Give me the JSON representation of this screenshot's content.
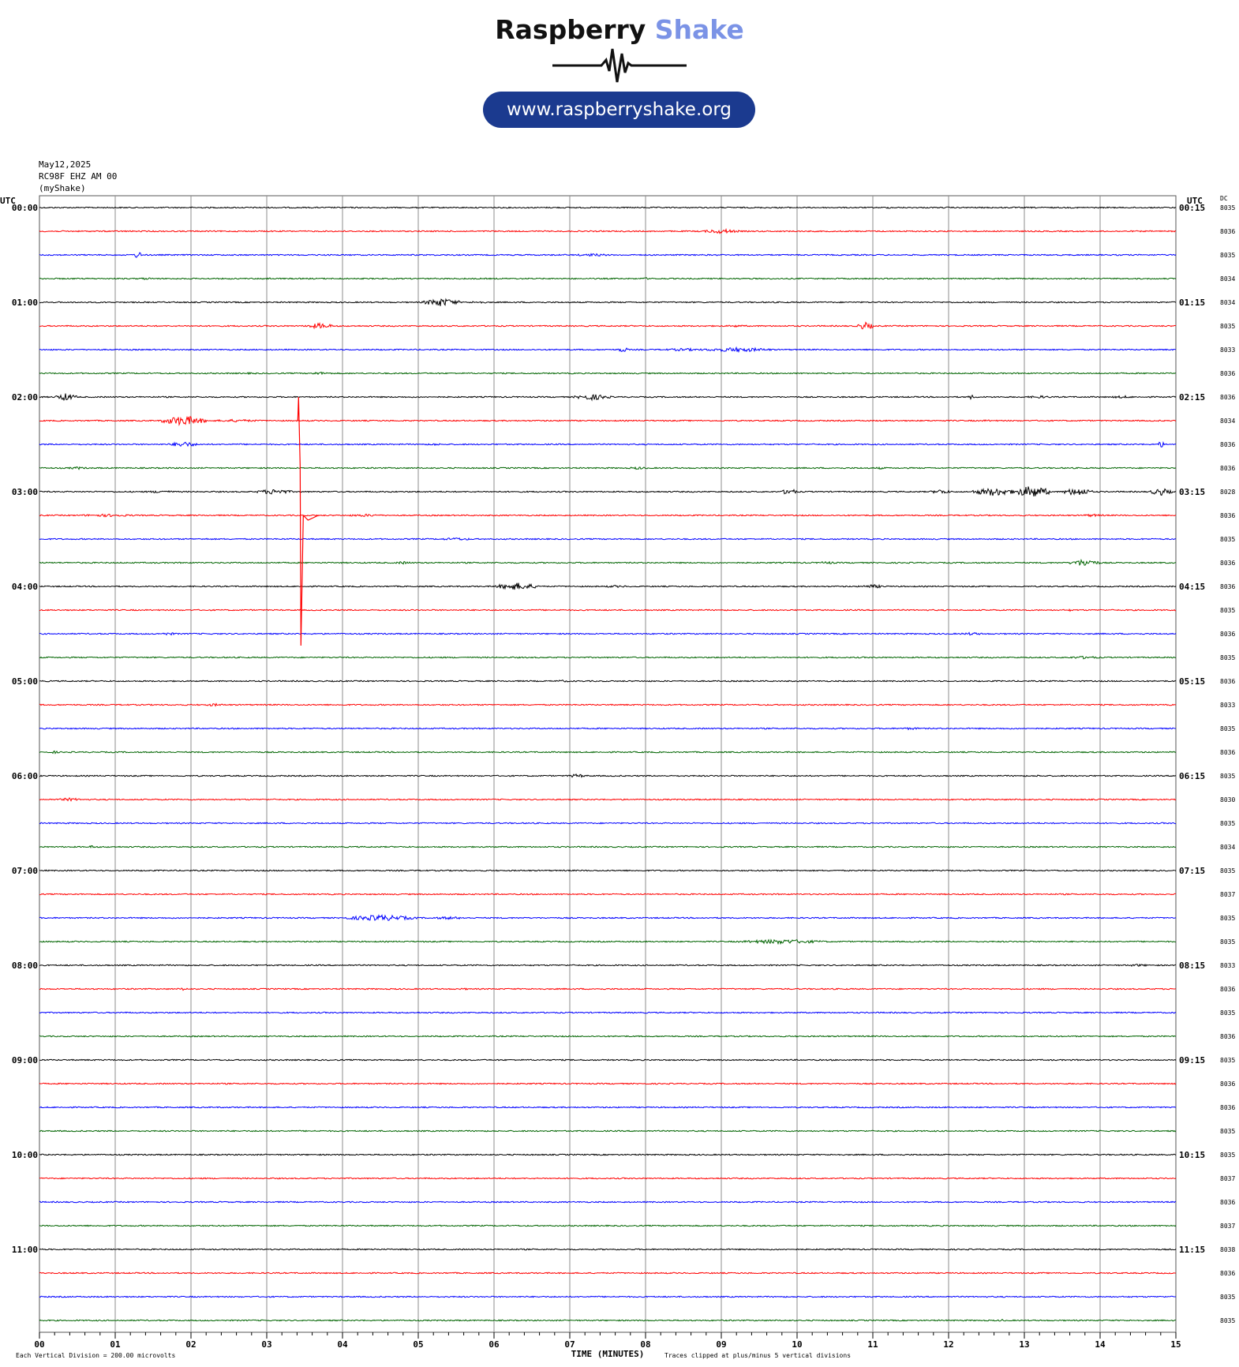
{
  "logo": {
    "title_part1": "Raspberry",
    "title_part2": "Shake",
    "url": "www.raspberryshake.org"
  },
  "header": {
    "date": "May12,2025",
    "station": "RC98F EHZ AM 00",
    "network": "(myShake)"
  },
  "colors": {
    "line_colors": [
      "#000000",
      "#ff0000",
      "#0000ff",
      "#006400"
    ],
    "grid": "#8c8c8c",
    "logo_blue": "#1b3a8f",
    "logo_light_blue": "#7b93e6"
  },
  "chart_data": {
    "type": "line",
    "title": "",
    "xlabel": "TIME (MINUTES)",
    "xlim": [
      0,
      15
    ],
    "x_ticks": [
      "00",
      "01",
      "02",
      "03",
      "04",
      "05",
      "06",
      "07",
      "08",
      "09",
      "10",
      "11",
      "12",
      "13",
      "14",
      "15"
    ],
    "left_axis_header": "UTC",
    "right_axis_header": "UTC",
    "dc_header": "DC",
    "left_hour_labels": [
      "00:00",
      "01:00",
      "02:00",
      "03:00",
      "04:00",
      "05:00",
      "06:00",
      "07:00",
      "08:00",
      "09:00",
      "10:00",
      "11:00"
    ],
    "right_hour_labels": [
      "00:15",
      "01:15",
      "02:15",
      "03:15",
      "04:15",
      "05:15",
      "06:15",
      "07:15",
      "08:15",
      "09:15",
      "10:15",
      "11:15"
    ],
    "dc_values": [
      "8035",
      "8036",
      "8035",
      "8034",
      "8034",
      "8035",
      "8033",
      "8036",
      "8036",
      "8034",
      "8036",
      "8036",
      "8028",
      "8036",
      "8035",
      "8036",
      "8036",
      "8035",
      "8036",
      "8035",
      "8036",
      "8033",
      "8035",
      "8036",
      "8035",
      "8030",
      "8035",
      "8034",
      "8035",
      "8037",
      "8035",
      "8035",
      "8033",
      "8036",
      "8035",
      "8036",
      "8035",
      "8036",
      "8036",
      "8035",
      "8035",
      "8037",
      "8036",
      "8037",
      "8038",
      "8036",
      "8035",
      "8035"
    ],
    "trace_count": 48,
    "events": [
      {
        "trace": 0,
        "minute": 11.2,
        "amp": 0.35,
        "dur": 0.4
      },
      {
        "trace": 1,
        "minute": 9.0,
        "amp": 1.0,
        "dur": 0.5
      },
      {
        "trace": 2,
        "minute": 1.3,
        "amp": 1.6,
        "dur": 0.12
      },
      {
        "trace": 2,
        "minute": 7.3,
        "amp": 0.6,
        "dur": 0.6
      },
      {
        "trace": 3,
        "minute": 1.4,
        "amp": 0.5,
        "dur": 0.3
      },
      {
        "trace": 3,
        "minute": 3.0,
        "amp": 0.5,
        "dur": 0.2
      },
      {
        "trace": 3,
        "minute": 8.0,
        "amp": 0.6,
        "dur": 0.1
      },
      {
        "trace": 4,
        "minute": 5.3,
        "amp": 1.8,
        "dur": 0.5
      },
      {
        "trace": 4,
        "minute": 5.8,
        "amp": 0.5,
        "dur": 0.4
      },
      {
        "trace": 5,
        "minute": 3.7,
        "amp": 1.2,
        "dur": 0.4
      },
      {
        "trace": 5,
        "minute": 9.2,
        "amp": 0.5,
        "dur": 0.4
      },
      {
        "trace": 5,
        "minute": 10.9,
        "amp": 1.6,
        "dur": 0.25
      },
      {
        "trace": 6,
        "minute": 7.7,
        "amp": 1.2,
        "dur": 0.15
      },
      {
        "trace": 6,
        "minute": 9.2,
        "amp": 1.0,
        "dur": 1.0
      },
      {
        "trace": 6,
        "minute": 8.5,
        "amp": 0.6,
        "dur": 0.7
      },
      {
        "trace": 7,
        "minute": 3.7,
        "amp": 0.6,
        "dur": 0.4
      },
      {
        "trace": 7,
        "minute": 2.8,
        "amp": 0.4,
        "dur": 0.3
      },
      {
        "trace": 8,
        "minute": 0.35,
        "amp": 1.6,
        "dur": 0.3
      },
      {
        "trace": 8,
        "minute": 7.3,
        "amp": 1.3,
        "dur": 0.5
      },
      {
        "trace": 8,
        "minute": 12.3,
        "amp": 1.0,
        "dur": 0.1
      },
      {
        "trace": 8,
        "minute": 13.2,
        "amp": 0.6,
        "dur": 0.4
      },
      {
        "trace": 8,
        "minute": 14.3,
        "amp": 0.6,
        "dur": 0.4
      },
      {
        "trace": 9,
        "minute": 1.9,
        "amp": 2.2,
        "dur": 0.6
      },
      {
        "trace": 9,
        "minute": 2.6,
        "amp": 0.6,
        "dur": 0.8
      },
      {
        "trace": 9,
        "minute": 12.5,
        "amp": 0.4,
        "dur": 0.3
      },
      {
        "trace": 10,
        "minute": 1.9,
        "amp": 1.2,
        "dur": 0.4
      },
      {
        "trace": 10,
        "minute": 14.8,
        "amp": 1.5,
        "dur": 0.1
      },
      {
        "trace": 10,
        "minute": 5.2,
        "amp": 0.5,
        "dur": 0.3
      },
      {
        "trace": 11,
        "minute": 0.5,
        "amp": 0.6,
        "dur": 0.3
      },
      {
        "trace": 11,
        "minute": 7.9,
        "amp": 0.6,
        "dur": 0.3
      },
      {
        "trace": 11,
        "minute": 11.1,
        "amp": 0.5,
        "dur": 0.2
      },
      {
        "trace": 12,
        "minute": 1.6,
        "amp": 0.6,
        "dur": 0.5
      },
      {
        "trace": 12,
        "minute": 3.1,
        "amp": 1.2,
        "dur": 0.5
      },
      {
        "trace": 12,
        "minute": 9.9,
        "amp": 1.6,
        "dur": 0.2
      },
      {
        "trace": 12,
        "minute": 11.9,
        "amp": 1.0,
        "dur": 0.3
      },
      {
        "trace": 12,
        "minute": 12.6,
        "amp": 1.8,
        "dur": 0.6
      },
      {
        "trace": 12,
        "minute": 13.1,
        "amp": 2.6,
        "dur": 0.5
      },
      {
        "trace": 12,
        "minute": 13.7,
        "amp": 1.8,
        "dur": 0.4
      },
      {
        "trace": 12,
        "minute": 14.8,
        "amp": 1.6,
        "dur": 0.3
      },
      {
        "trace": 13,
        "minute": 0.9,
        "amp": 0.6,
        "dur": 1.0
      },
      {
        "trace": 13,
        "minute": 4.3,
        "amp": 0.6,
        "dur": 0.6
      },
      {
        "trace": 13,
        "minute": 13.9,
        "amp": 0.6,
        "dur": 0.4
      },
      {
        "trace": 14,
        "minute": 5.5,
        "amp": 0.6,
        "dur": 0.6
      },
      {
        "trace": 14,
        "minute": 2.2,
        "amp": 0.4,
        "dur": 0.3
      },
      {
        "trace": 15,
        "minute": 13.8,
        "amp": 1.6,
        "dur": 0.4
      },
      {
        "trace": 15,
        "minute": 4.8,
        "amp": 0.6,
        "dur": 0.3
      },
      {
        "trace": 15,
        "minute": 10.4,
        "amp": 0.6,
        "dur": 0.3
      },
      {
        "trace": 16,
        "minute": 6.3,
        "amp": 1.6,
        "dur": 0.6
      },
      {
        "trace": 16,
        "minute": 11.0,
        "amp": 0.8,
        "dur": 0.4
      },
      {
        "trace": 16,
        "minute": 7.6,
        "amp": 0.5,
        "dur": 0.5
      },
      {
        "trace": 17,
        "minute": 13.6,
        "amp": 0.5,
        "dur": 0.1
      },
      {
        "trace": 18,
        "minute": 1.7,
        "amp": 0.6,
        "dur": 0.3
      },
      {
        "trace": 18,
        "minute": 12.3,
        "amp": 0.6,
        "dur": 0.4
      },
      {
        "trace": 19,
        "minute": 13.8,
        "amp": 0.6,
        "dur": 0.6
      },
      {
        "trace": 20,
        "minute": 6.9,
        "amp": 0.5,
        "dur": 0.3
      },
      {
        "trace": 21,
        "minute": 2.3,
        "amp": 0.6,
        "dur": 0.3
      },
      {
        "trace": 22,
        "minute": 11.5,
        "amp": 0.5,
        "dur": 0.4
      },
      {
        "trace": 23,
        "minute": 0.2,
        "amp": 0.7,
        "dur": 0.1
      },
      {
        "trace": 24,
        "minute": 7.1,
        "amp": 0.8,
        "dur": 0.3
      },
      {
        "trace": 24,
        "minute": 13.2,
        "amp": 0.6,
        "dur": 0.1
      },
      {
        "trace": 25,
        "minute": 0.4,
        "amp": 0.7,
        "dur": 0.4
      },
      {
        "trace": 27,
        "minute": 0.7,
        "amp": 0.8,
        "dur": 0.1
      },
      {
        "trace": 30,
        "minute": 4.5,
        "amp": 1.3,
        "dur": 1.0
      },
      {
        "trace": 30,
        "minute": 5.4,
        "amp": 0.6,
        "dur": 0.6
      },
      {
        "trace": 31,
        "minute": 9.8,
        "amp": 1.0,
        "dur": 1.2
      },
      {
        "trace": 32,
        "minute": 14.5,
        "amp": 0.5,
        "dur": 0.5
      },
      {
        "trace": 33,
        "minute": 1.9,
        "amp": 0.6,
        "dur": 0.2
      },
      {
        "trace": 33,
        "minute": 5.6,
        "amp": 0.4,
        "dur": 0.3
      },
      {
        "trace": 34,
        "minute": 1.1,
        "amp": 0.4,
        "dur": 0.2
      },
      {
        "trace": 44,
        "minute": 4.4,
        "amp": 0.5,
        "dur": 0.2
      },
      {
        "trace": 47,
        "minute": 12.7,
        "amp": 0.6,
        "dur": 0.1
      }
    ],
    "large_spike": {
      "trace": 9,
      "minute": 3.42,
      "up_traces": 1.0,
      "down_traces": 9.5
    },
    "bottom_note_left": "Each Vertical Division =  200.00 microvolts",
    "bottom_note_right": "Traces clipped at plus/minus 5 vertical divisions"
  }
}
